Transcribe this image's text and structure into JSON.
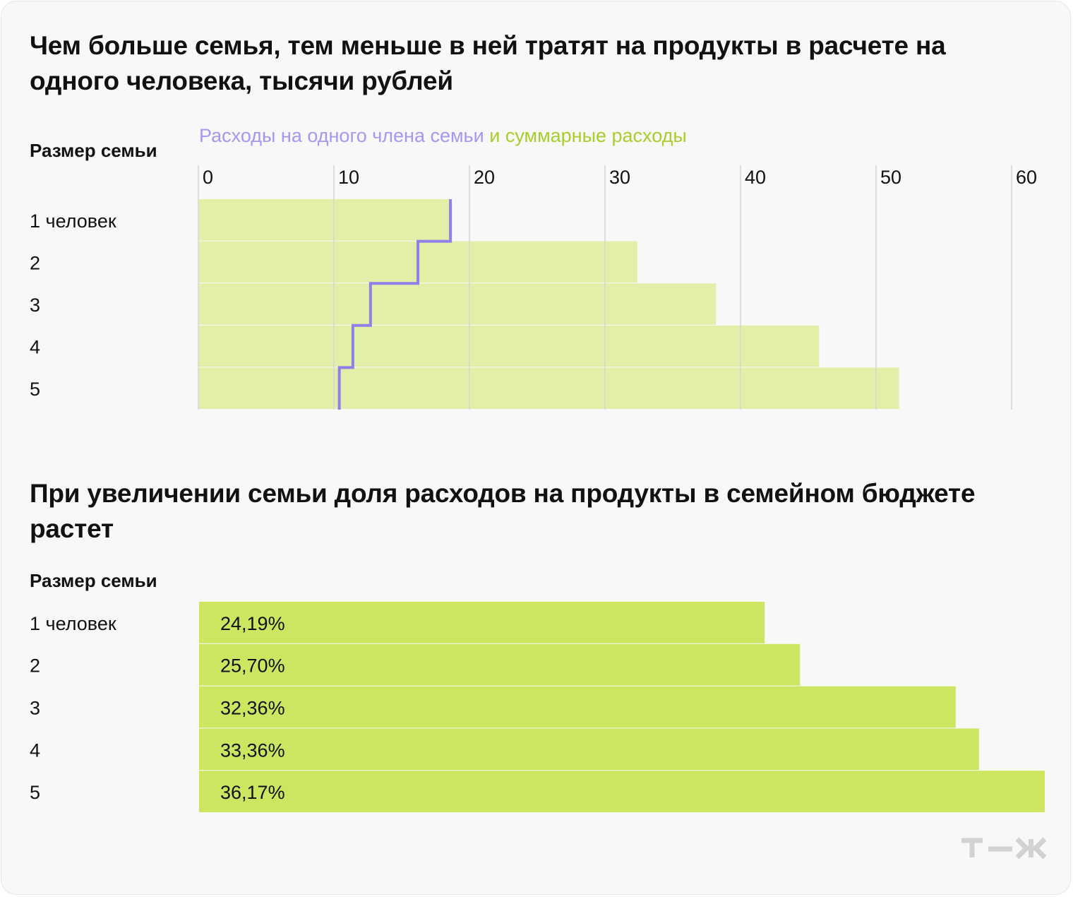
{
  "colors": {
    "background": "#f8f8f8",
    "total_bar": "#e1efa9",
    "per_person_line": "#8f7fe8",
    "share_bar": "#cce661",
    "grid": "#d6d6d6",
    "legend_per_person_text": "#a897f0",
    "legend_total_text": "#a6cf2c",
    "logo": "#d2d2d2"
  },
  "logo_icon": "t-zh-logo-icon",
  "chart_data": [
    {
      "type": "bar",
      "orientation": "horizontal",
      "title": "Чем больше семья, тем меньше в ней тратят на продукты в расчете на одного человека, тысячи рублей",
      "ylabel": "Размер семьи",
      "legend": {
        "per_person": "Расходы на одного члена семьи",
        "total": "и суммарные расходы",
        "placement": "top"
      },
      "categories": [
        "1 человек",
        "2",
        "3",
        "4",
        "5"
      ],
      "xlim": [
        0,
        60
      ],
      "xticks": [
        "0",
        "10",
        "20",
        "30",
        "40",
        "50",
        "60"
      ],
      "grid": true,
      "series": [
        {
          "key": "total",
          "type": "bar",
          "values": [
            18.6,
            32.4,
            38.2,
            45.8,
            51.7
          ]
        },
        {
          "key": "per_person",
          "type": "step-line",
          "values": [
            18.6,
            16.2,
            12.7,
            11.4,
            10.4
          ]
        }
      ]
    },
    {
      "type": "bar",
      "orientation": "horizontal",
      "title": "При увеличении семьи доля расходов на продукты в семейном бюджете растет",
      "ylabel": "Размер семьи",
      "categories": [
        "1 человек",
        "2",
        "3",
        "4",
        "5"
      ],
      "values": [
        24.19,
        25.7,
        32.36,
        33.36,
        36.17
      ],
      "value_labels": [
        "24,19%",
        "25,70%",
        "32,36%",
        "33,36%",
        "36,17%"
      ],
      "grid": false
    }
  ]
}
